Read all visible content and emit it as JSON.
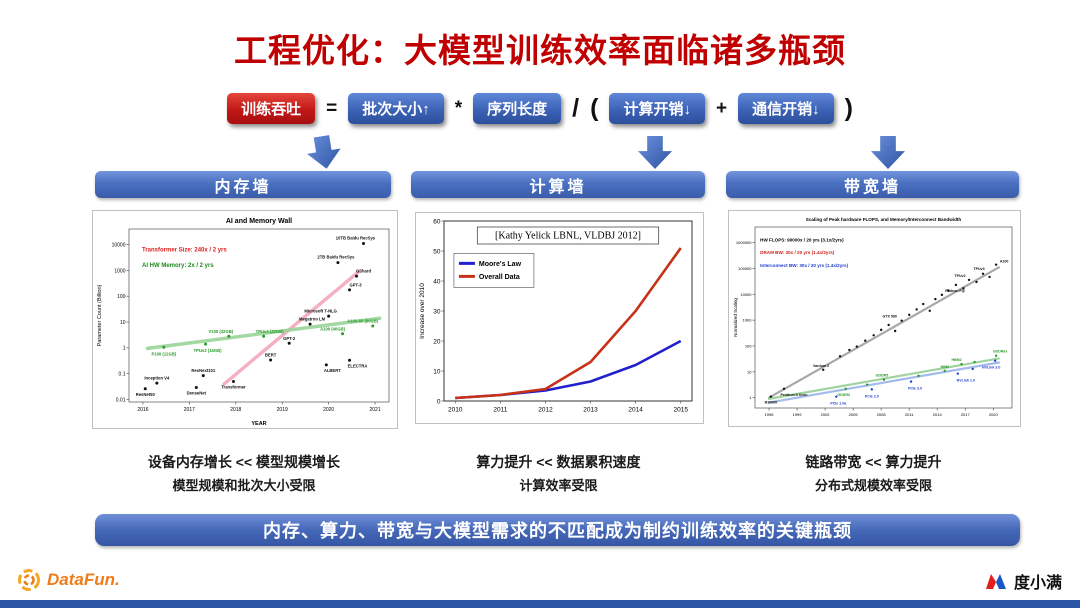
{
  "slide": {
    "title": "工程优化：大模型训练效率面临诸多瓶颈",
    "banner": "内存、算力、带宽与大模型需求的不匹配成为制约训练效率的关键瓶颈"
  },
  "formula": {
    "tokens": [
      {
        "text": "训练吞吐"
      },
      {
        "text": "="
      },
      {
        "text": "批次大小↑"
      },
      {
        "text": "*"
      },
      {
        "text": "序列长度"
      },
      {
        "text": "/"
      },
      {
        "text": "("
      },
      {
        "text": "计算开销↓"
      },
      {
        "text": "+"
      },
      {
        "text": "通信开销↓"
      },
      {
        "text": ")"
      }
    ]
  },
  "columns": [
    {
      "header": "内存墙",
      "caption1": "设备内存增长 << 模型规模增长",
      "caption2": "模型规模和批次大小受限"
    },
    {
      "header": "计算墙",
      "caption1": "算力提升 << 数据累积速度",
      "caption2": "计算效率受限"
    },
    {
      "header": "带宽墙",
      "caption1": "链路带宽 << 算力提升",
      "caption2": "分布式规模效率受限"
    }
  ],
  "footer": {
    "datafun": "DataFun.",
    "duxiaoman": "度小满"
  },
  "colors": {
    "title_red": "#c00000",
    "badge_blue": "#3c62b6",
    "badge_red": "#c01818",
    "bar_blue": "#4a70c0",
    "bottom_bar": "#2d55a5",
    "datafun_orange": "#ef7c1a",
    "duxiaoman_red": "#e61e19",
    "duxiaoman_blue": "#1a56c4"
  },
  "chart_data": [
    {
      "name": "memory-wall-chart",
      "type": "scatter",
      "title": "AI and Memory Wall",
      "title_size": 7,
      "xlabel": "YEAR",
      "ylabel": "Parameter Count (Billion)",
      "ylabel_size": 5.5,
      "xlim": [
        2015.7,
        2021.3
      ],
      "ylim": [
        0.008,
        40000
      ],
      "yscale": "log",
      "xticks": [
        2016,
        2017,
        2018,
        2019,
        2020,
        2021
      ],
      "yticks": [
        0.01,
        0.1,
        1,
        10,
        100,
        1000,
        10000
      ],
      "ytick_labels": [
        "0.01",
        "0.1",
        "1",
        "10",
        "100",
        "1000",
        "10000"
      ],
      "tick_size": 5,
      "margins": {
        "l": 36,
        "r": 8,
        "t": 18,
        "b": 26
      },
      "annotations": [
        {
          "text": "Transformer Size: 240x / 2 yrs",
          "color": "#e02020",
          "fx": 0.05,
          "fy": 0.13,
          "bold": true,
          "size": 6
        },
        {
          "text": "AI HW Memory: 2x / 2 yrs",
          "color": "#1e8a1e",
          "fx": 0.05,
          "fy": 0.22,
          "bold": true,
          "size": 6
        }
      ],
      "trendlines": [
        {
          "x1": 2017.75,
          "y1": 0.04,
          "x2": 2020.65,
          "y2": 900,
          "color": "#f2a9bc",
          "width": 3.5,
          "opacity": 0.9
        },
        {
          "x1": 2016.1,
          "y1": 0.95,
          "x2": 2021.1,
          "y2": 14,
          "color": "#9ad49a",
          "width": 3.5,
          "opacity": 0.9
        }
      ],
      "series": [
        {
          "name": "AI models",
          "color": "#111111",
          "label_color": "#111111",
          "label_size": 4.2,
          "r": 1.5,
          "points": [
            [
              2016.05,
              0.026,
              "ResNet50",
              0,
              7
            ],
            [
              2016.3,
              0.043,
              "Inception V4",
              0,
              -3.5
            ],
            [
              2017.15,
              0.029,
              "DenseNet",
              0,
              7
            ],
            [
              2017.3,
              0.084,
              "ResNext101",
              0,
              -3.5
            ],
            [
              2017.95,
              0.05,
              "Transformer",
              0,
              7
            ],
            [
              2018.75,
              0.34,
              "BERT",
              0,
              -3.5
            ],
            [
              2019.15,
              1.5,
              "GPT-2",
              0,
              -3.5
            ],
            [
              2019.6,
              8.3,
              "Megatron LM",
              2,
              -3.5
            ],
            [
              2020.0,
              17,
              "Microsoft T-NLG",
              -8,
              -3.5
            ],
            [
              2019.95,
              0.22,
              "ALBERT",
              6,
              7
            ],
            [
              2020.45,
              0.33,
              "ELECTRA",
              8,
              7
            ],
            [
              2020.45,
              175,
              "GPT-3",
              6,
              -3.5
            ],
            [
              2020.6,
              600,
              "GShard",
              7,
              -3.5
            ],
            [
              2020.2,
              2000,
              "2TB Baidu RecSys",
              -2,
              -4
            ],
            [
              2020.75,
              11000,
              "10TB Baidu RecSys",
              -8,
              -4
            ]
          ]
        },
        {
          "name": "AI hardware memory",
          "color": "#2a9a2a",
          "label_color": "#2a9a2a",
          "label_size": 4.2,
          "r": 1.5,
          "points": [
            [
              2016.45,
              1.05,
              "P100 (12GB)",
              0,
              8
            ],
            [
              2017.35,
              1.4,
              "TPUv2 (16GB)",
              2,
              8
            ],
            [
              2017.85,
              2.8,
              "V100 (32GB)",
              -8,
              -3.5
            ],
            [
              2018.6,
              2.8,
              "TPUv3 (32GB)",
              6,
              -3.5
            ],
            [
              2020.3,
              3.5,
              "A100 (40GB)",
              -10,
              -3.5
            ],
            [
              2020.95,
              7,
              "A100-80 (80GB)",
              -10,
              -3.5
            ]
          ]
        }
      ]
    },
    {
      "name": "compute-wall-chart",
      "type": "line",
      "inner_title": "[Kathy Yelick LBNL, VLDBJ 2012]",
      "inner_title_size": 10,
      "ylabel": "Increase over 2010",
      "ylabel_size": 6.5,
      "xlim": [
        2009.75,
        2015.25
      ],
      "ylim": [
        0,
        60
      ],
      "xticks": [
        2010,
        2011,
        2012,
        2013,
        2014,
        2015
      ],
      "yticks": [
        0,
        10,
        20,
        30,
        40,
        50,
        60
      ],
      "ytick_labels": [
        "0",
        "10",
        "20",
        "30",
        "40",
        "50",
        "60"
      ],
      "tick_size": 6.5,
      "margins": {
        "l": 28,
        "r": 11,
        "t": 8,
        "b": 22
      },
      "frame_color": "#333333",
      "legend": {
        "fx": 0.04,
        "fy": 0.18,
        "w": 80,
        "row": 13,
        "swatch": 16,
        "size": 7
      },
      "x": [
        2010,
        2011,
        2012,
        2013,
        2014,
        2015
      ],
      "series": [
        {
          "name": "Moore's Law",
          "mode": "line",
          "color": "#2020cc",
          "width": 2.6,
          "values": [
            1,
            2,
            3.5,
            6.5,
            12,
            20
          ]
        },
        {
          "name": "Overall Data",
          "mode": "line",
          "color": "#c83018",
          "width": 2.6,
          "values": [
            1,
            2,
            4,
            13,
            30,
            51
          ]
        }
      ]
    },
    {
      "name": "bandwidth-wall-chart",
      "type": "scatter",
      "title": "Scaling of Peak hardware FLOPS, and Memory/Interconnect Bandwidth",
      "title_size": 4.6,
      "ylabel": "Normalized Scaling",
      "ylabel_size": 4.5,
      "xlim": [
        1994.5,
        2022
      ],
      "ylim": [
        0.4,
        4000000
      ],
      "yscale": "log",
      "xticks": [
        1996,
        1999,
        2002,
        2005,
        2008,
        2011,
        2014,
        2017,
        2020
      ],
      "yticks": [
        1,
        10,
        100,
        1000,
        10000,
        100000,
        1000000
      ],
      "ytick_labels": [
        "1",
        "10",
        "100",
        "1000",
        "10000",
        "100000",
        "1000000"
      ],
      "tick_size": 4,
      "margins": {
        "l": 26,
        "r": 8,
        "t": 16,
        "b": 18
      },
      "annotations": [
        {
          "text": "HW FLOPS:  90000x / 20 yrs (3.1x/2yrs)",
          "color": "#000000",
          "fx": 0.02,
          "fy": 0.08,
          "bold": true,
          "size": 4.6
        },
        {
          "text": "DRAM BW:  30x / 20 yrs (1.4x/2yrs)",
          "color": "#cc2018",
          "fx": 0.02,
          "fy": 0.15,
          "bold": true,
          "size": 4.6
        },
        {
          "text": "Interconnect BW: 30x / 20 yrs (1.4x/2yrs)",
          "color": "#2040cc",
          "fx": 0.02,
          "fy": 0.22,
          "bold": true,
          "size": 4.6
        }
      ],
      "trendlines": [
        {
          "x1": 1996,
          "y1": 1,
          "x2": 2020.6,
          "y2": 110000,
          "color": "#9a9a9a",
          "width": 2.2,
          "opacity": 0.85
        },
        {
          "x1": 1996,
          "y1": 0.9,
          "x2": 2020.6,
          "y2": 33,
          "color": "#96cf96",
          "width": 2.2,
          "opacity": 0.9
        },
        {
          "x1": 1996,
          "y1": 0.65,
          "x2": 2020.6,
          "y2": 23,
          "color": "#9ab4e8",
          "width": 2.2,
          "opacity": 0.9
        }
      ],
      "series": [
        {
          "name": "HW FLOPS",
          "color": "#111111",
          "label_color": "#111111",
          "label_size": 3.6,
          "r": 1.2,
          "points": [
            [
              1996.2,
              1.1,
              "R10000",
              0,
              7
            ],
            [
              1997.6,
              2.2,
              "Pentium II Xeon",
              10,
              7
            ],
            [
              2001.8,
              12,
              "Itanium 2",
              -2,
              -3
            ],
            [
              2003.6,
              40
            ],
            [
              2004.6,
              70
            ],
            [
              2005.4,
              95
            ],
            [
              2006.3,
              160
            ],
            [
              2007.2,
              260
            ],
            [
              2008.0,
              420
            ],
            [
              2008.8,
              650
            ],
            [
              2009.5,
              380
            ],
            [
              2010.2,
              950,
              "GTX 580",
              -12,
              -3
            ],
            [
              2011.0,
              1600
            ],
            [
              2011.8,
              2600
            ],
            [
              2012.5,
              4200
            ],
            [
              2013.2,
              2300
            ],
            [
              2013.8,
              6500
            ],
            [
              2014.5,
              9500,
              "Radeon Fiji",
              13,
              -3
            ],
            [
              2015.2,
              14000
            ],
            [
              2016.0,
              23000
            ],
            [
              2016.8,
              17000
            ],
            [
              2017.4,
              36000,
              "TPUv2",
              -9,
              -3
            ],
            [
              2018.2,
              30000
            ],
            [
              2018.9,
              62000,
              "TPUv3",
              -4,
              -4
            ],
            [
              2019.6,
              47000
            ],
            [
              2020.3,
              140000,
              "A100",
              8,
              -2
            ]
          ]
        },
        {
          "name": "DRAM BW",
          "color": "#2a9a2a",
          "label_color": "#2a9a2a",
          "label_size": 3.6,
          "r": 1.2,
          "points": [
            [
              2004.2,
              2.2,
              "GDDR3",
              -2,
              7
            ],
            [
              2006.5,
              3.2
            ],
            [
              2008.3,
              5,
              "GDDR5",
              -2,
              -3
            ],
            [
              2012.0,
              7
            ],
            [
              2014.8,
              11,
              "HBM",
              0,
              -3
            ],
            [
              2016.6,
              20,
              "HBM2",
              -5,
              -3
            ],
            [
              2018.0,
              24
            ],
            [
              2020.3,
              42,
              "GDDR6x",
              4,
              -3
            ]
          ]
        },
        {
          "name": "Interconnect BW",
          "color": "#2040cc",
          "label_color": "#2040cc",
          "label_size": 3.6,
          "r": 1.2,
          "points": [
            [
              2003.2,
              1.1,
              "PCIe 1.0a",
              2,
              8
            ],
            [
              2007.0,
              2.1,
              "PCIe 2.0",
              0,
              8
            ],
            [
              2011.2,
              4.2,
              "PCIe 3.0",
              4,
              8
            ],
            [
              2016.2,
              8.5,
              "NVLink 1.0",
              8,
              8
            ],
            [
              2017.8,
              13
            ],
            [
              2020.2,
              27,
              "NVLink 3.0",
              -4,
              8
            ]
          ]
        }
      ]
    }
  ]
}
